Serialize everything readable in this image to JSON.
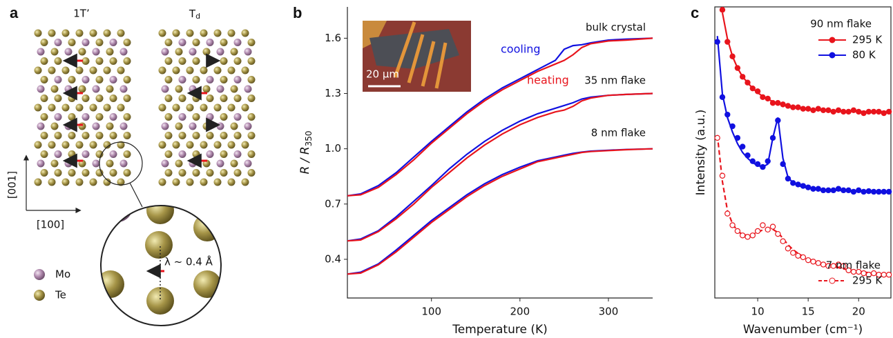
{
  "figure": {
    "panel_labels": [
      "a",
      "b",
      "c"
    ],
    "structure": {
      "phase1": "1T’",
      "phase2": {
        "text": "T",
        "subscript": "d"
      },
      "axis_vertical": "[001]",
      "axis_horizontal": "[100]",
      "legend": [
        "Mo",
        "Te"
      ],
      "displacement": "λ ~ 0.4 Å"
    }
  },
  "chart_data": [
    {
      "type": "line",
      "xlabel": "Temperature (K)",
      "ylabel": {
        "text": "R / R",
        "subscript": "350"
      },
      "x": [
        5,
        20,
        40,
        60,
        80,
        100,
        120,
        140,
        160,
        180,
        200,
        220,
        240,
        250,
        260,
        270,
        280,
        300,
        320,
        350
      ],
      "series": [
        {
          "name": "cooling",
          "color": "#1010e0",
          "values": [
            0.745,
            0.755,
            0.8,
            0.87,
            0.955,
            1.04,
            1.12,
            1.2,
            1.27,
            1.33,
            1.38,
            1.43,
            1.48,
            1.54,
            1.56,
            1.565,
            1.575,
            1.59,
            1.595,
            1.6
          ]
        },
        {
          "name": "heating",
          "color": "#e8141c",
          "values": [
            0.745,
            0.75,
            0.79,
            0.86,
            0.94,
            1.03,
            1.11,
            1.19,
            1.26,
            1.32,
            1.37,
            1.42,
            1.46,
            1.48,
            1.51,
            1.55,
            1.57,
            1.585,
            1.59,
            1.6
          ]
        },
        {
          "color": "#1010e0",
          "values": [
            0.5,
            0.51,
            0.555,
            0.63,
            0.715,
            0.8,
            0.89,
            0.97,
            1.04,
            1.1,
            1.15,
            1.19,
            1.22,
            1.235,
            1.25,
            1.27,
            1.28,
            1.29,
            1.295,
            1.3
          ]
        },
        {
          "color": "#e8141c",
          "values": [
            0.5,
            0.505,
            0.55,
            0.62,
            0.7,
            0.79,
            0.87,
            0.95,
            1.02,
            1.08,
            1.13,
            1.17,
            1.2,
            1.21,
            1.23,
            1.26,
            1.275,
            1.29,
            1.295,
            1.3
          ]
        },
        {
          "color": "#1010e0",
          "values": [
            0.32,
            0.33,
            0.375,
            0.45,
            0.53,
            0.61,
            0.68,
            0.75,
            0.81,
            0.86,
            0.9,
            0.935,
            0.955,
            0.965,
            0.975,
            0.982,
            0.987,
            0.992,
            0.996,
            1.0
          ]
        },
        {
          "color": "#e8141c",
          "values": [
            0.32,
            0.325,
            0.37,
            0.44,
            0.52,
            0.6,
            0.67,
            0.74,
            0.8,
            0.85,
            0.89,
            0.93,
            0.95,
            0.96,
            0.97,
            0.98,
            0.985,
            0.99,
            0.995,
            1.0
          ]
        }
      ],
      "annotations": [
        "bulk crystal",
        "35 nm flake",
        "8 nm flake"
      ],
      "inset_scale": "20 μm",
      "xlim": [
        5,
        350
      ],
      "xticks": [
        100,
        200,
        300
      ],
      "ylim": [
        0.19,
        1.77
      ],
      "yticks": [
        0.4,
        0.7,
        {
          "value": 1,
          "label": "1.0"
        },
        1.3,
        1.6
      ]
    },
    {
      "type": "scatter",
      "xlabel": "Wavenumber (cm⁻¹)",
      "ylabel": "Intensity (a.u.)",
      "groups": [
        "90 nm flake",
        "7 nm flake"
      ],
      "x": [
        6,
        6.5,
        7,
        7.5,
        8,
        8.5,
        9,
        9.5,
        10,
        10.5,
        11,
        11.5,
        12,
        12.5,
        13,
        13.5,
        14,
        14.5,
        15,
        15.5,
        16,
        16.5,
        17,
        17.5,
        18,
        18.5,
        19,
        19.5,
        20,
        20.5,
        21,
        21.5,
        22,
        22.5,
        23
      ],
      "series": [
        {
          "name": "295 K",
          "color": "#e8141c",
          "marker": "filled",
          "fit_dashed": false,
          "values": [
            null,
            99,
            88,
            83,
            79,
            76,
            74,
            72,
            71,
            69,
            68.5,
            67,
            67,
            66.5,
            66,
            65.5,
            65.5,
            65,
            65,
            64.5,
            65,
            64.5,
            64.5,
            64,
            64.5,
            64,
            64,
            64.5,
            64,
            63.5,
            64,
            64,
            64,
            63.5,
            64
          ],
          "fit": [
            null,
            98,
            89,
            83,
            79,
            76,
            74,
            72,
            70.5,
            69.3,
            68.3,
            67.5,
            66.9,
            66.4,
            66,
            65.6,
            65.3,
            65.1,
            64.9,
            64.7,
            64.6,
            64.5,
            64.4,
            64.3,
            64.2,
            64.2,
            64.1,
            64.1,
            64.1,
            64,
            64,
            64,
            64,
            64,
            64
          ]
        },
        {
          "name": "80 K",
          "color": "#1010e0",
          "marker": "filled",
          "fit_dashed": false,
          "values": [
            88,
            69,
            63,
            59,
            55,
            52,
            49,
            47,
            46,
            45,
            47,
            55,
            61,
            46,
            41,
            39.5,
            39,
            38.5,
            38,
            37.5,
            37.5,
            37,
            37,
            37,
            37.5,
            37,
            37,
            36.5,
            37,
            36.5,
            36.7,
            36.5,
            36.5,
            36.5,
            36.5
          ],
          "fit": [
            90,
            70,
            62,
            57,
            53,
            50,
            48,
            46.5,
            45.5,
            45,
            46,
            55,
            62,
            48,
            41.5,
            39.5,
            38.6,
            38.1,
            37.8,
            37.5,
            37.3,
            37.2,
            37.1,
            37,
            37,
            36.9,
            36.9,
            36.8,
            36.8,
            36.7,
            36.7,
            36.7,
            36.6,
            36.6,
            36.6
          ]
        },
        {
          "name": "295 K",
          "color": "#e8141c",
          "marker": "open",
          "fit_dashed": true,
          "values": [
            55,
            42,
            29,
            25,
            23,
            21.5,
            21,
            21.5,
            23,
            25,
            23.5,
            24.5,
            22,
            19.5,
            17,
            15.5,
            14.5,
            14,
            13,
            12.5,
            12,
            11.5,
            11,
            11,
            11.5,
            11,
            9.5,
            9,
            9,
            8.5,
            8,
            8.5,
            8,
            8,
            8
          ],
          "fit": [
            56,
            40,
            30,
            25.5,
            23,
            21.8,
            21.5,
            21.8,
            22.6,
            23.4,
            23.8,
            23.6,
            22.5,
            20.5,
            18.3,
            16.6,
            15.3,
            14.3,
            13.4,
            12.7,
            12.1,
            11.6,
            11.2,
            10.8,
            10.4,
            10,
            9.7,
            9.4,
            9.1,
            8.9,
            8.7,
            8.5,
            8.3,
            8.2,
            8.1
          ]
        }
      ],
      "xlim": [
        5.75,
        23.2
      ],
      "xticks": [
        10,
        15,
        20
      ],
      "ylim": [
        0,
        100
      ]
    }
  ]
}
